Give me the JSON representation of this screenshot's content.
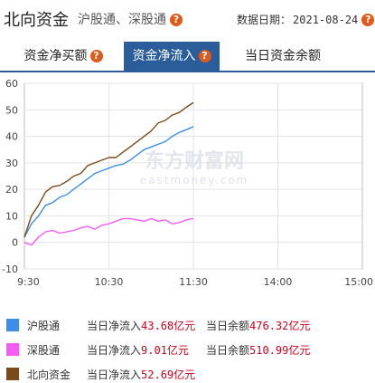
{
  "header": {
    "title": "北向资金",
    "subtitle": "沪股通、深股通",
    "help_glyph": "?",
    "date_label": "数据日期：",
    "date_value": "2021-08-24"
  },
  "tabs": [
    {
      "label": "资金净买额",
      "active": false,
      "has_help": true
    },
    {
      "label": "资金净流入",
      "active": true,
      "has_help": true
    },
    {
      "label": "当日资金余额",
      "active": false,
      "has_help": false
    }
  ],
  "watermark": {
    "cn": "东方财富网",
    "en": "eastmoney.com"
  },
  "chart_data": {
    "type": "line",
    "xlabel": "",
    "ylabel": "",
    "x_ticks": [
      "9:30",
      "10:30",
      "11:30",
      "14:00",
      "15:00"
    ],
    "y_ticks": [
      60,
      50,
      40,
      30,
      20,
      10,
      0,
      -10
    ],
    "ylim": [
      -10,
      60
    ],
    "grid": true,
    "x_unit": "minutes since 9:30 open (trading time)",
    "series": [
      {
        "name": "沪股通",
        "color": "#3c8ee6",
        "points": [
          [
            0,
            2
          ],
          [
            5,
            7
          ],
          [
            10,
            10
          ],
          [
            15,
            14
          ],
          [
            20,
            15
          ],
          [
            25,
            17
          ],
          [
            30,
            18
          ],
          [
            35,
            20
          ],
          [
            40,
            22
          ],
          [
            45,
            24
          ],
          [
            50,
            26
          ],
          [
            55,
            27
          ],
          [
            60,
            28
          ],
          [
            65,
            29
          ],
          [
            70,
            29.5
          ],
          [
            75,
            31
          ],
          [
            80,
            33
          ],
          [
            85,
            35
          ],
          [
            90,
            36
          ],
          [
            95,
            37
          ],
          [
            100,
            38
          ],
          [
            105,
            40
          ],
          [
            110,
            41.5
          ],
          [
            115,
            42.5
          ],
          [
            120,
            43.68
          ]
        ]
      },
      {
        "name": "深股通",
        "color": "#f55bf5",
        "points": [
          [
            0,
            0
          ],
          [
            5,
            -1
          ],
          [
            10,
            2
          ],
          [
            15,
            4
          ],
          [
            20,
            4.5
          ],
          [
            25,
            3.5
          ],
          [
            30,
            4
          ],
          [
            35,
            4.5
          ],
          [
            40,
            5.5
          ],
          [
            45,
            6
          ],
          [
            50,
            5
          ],
          [
            55,
            6.5
          ],
          [
            60,
            7
          ],
          [
            65,
            8
          ],
          [
            70,
            9
          ],
          [
            75,
            9
          ],
          [
            80,
            8.5
          ],
          [
            85,
            8
          ],
          [
            90,
            9
          ],
          [
            95,
            8
          ],
          [
            100,
            8.5
          ],
          [
            105,
            7
          ],
          [
            110,
            7.5
          ],
          [
            115,
            8.5
          ],
          [
            120,
            9.01
          ]
        ]
      },
      {
        "name": "北向资金",
        "color": "#7a4a1a",
        "points": [
          [
            0,
            2
          ],
          [
            5,
            10
          ],
          [
            10,
            14
          ],
          [
            15,
            19
          ],
          [
            20,
            21
          ],
          [
            25,
            21.5
          ],
          [
            30,
            23
          ],
          [
            35,
            25
          ],
          [
            40,
            26
          ],
          [
            45,
            29
          ],
          [
            50,
            30
          ],
          [
            55,
            31
          ],
          [
            60,
            32
          ],
          [
            65,
            32
          ],
          [
            70,
            34
          ],
          [
            75,
            36
          ],
          [
            80,
            38
          ],
          [
            85,
            40
          ],
          [
            90,
            42
          ],
          [
            95,
            45
          ],
          [
            100,
            46
          ],
          [
            105,
            48
          ],
          [
            110,
            49
          ],
          [
            115,
            51
          ],
          [
            120,
            52.69
          ]
        ]
      }
    ]
  },
  "legend": [
    {
      "name": "沪股通",
      "color": "#3c8ee6",
      "flow_label": "当日净流入",
      "flow_value": "43.68亿元",
      "balance_label": "当日余额",
      "balance_value": "476.32亿元"
    },
    {
      "name": "深股通",
      "color": "#f55bf5",
      "flow_label": "当日净流入",
      "flow_value": "9.01亿元",
      "balance_label": "当日余额",
      "balance_value": "510.99亿元"
    },
    {
      "name": "北向资金",
      "color": "#7a4a1a",
      "flow_label": "当日净流入",
      "flow_value": "52.69亿元",
      "balance_label": "",
      "balance_value": ""
    }
  ]
}
